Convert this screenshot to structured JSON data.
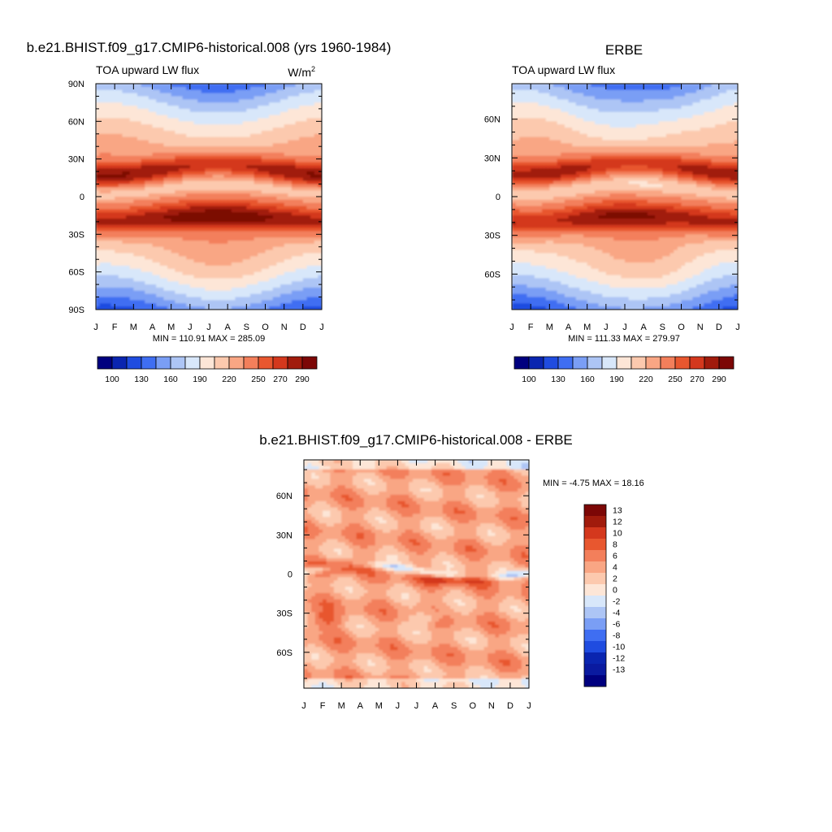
{
  "figure_title": "",
  "chart_data": [
    {
      "type": "heatmap",
      "title": "b.e21.BHIST.f09_g17.CMIP6-historical.008 (yrs 1960-1984)",
      "subtitle": "TOA upward LW flux",
      "units": "W/m",
      "units_sup": "2",
      "x_tick_labels": [
        "J",
        "F",
        "M",
        "A",
        "M",
        "J",
        "J",
        "A",
        "S",
        "O",
        "N",
        "D",
        "J"
      ],
      "y_tick_labels": [
        "90N",
        "60N",
        "30N",
        "0",
        "30S",
        "60S",
        "90S"
      ],
      "y_tick_values": [
        90,
        60,
        30,
        0,
        -30,
        -60,
        -90
      ],
      "xlim": [
        0,
        12
      ],
      "ylim": [
        -90,
        90
      ],
      "stats": "MIN = 110.91 MAX = 285.09",
      "min": 110.91,
      "max": 285.09,
      "colorbar": {
        "labels": [
          "100",
          "130",
          "160",
          "190",
          "220",
          "250",
          "270",
          "290"
        ],
        "colors": [
          "#00007f",
          "#0a25b0",
          "#1f4ce0",
          "#3f6ef2",
          "#7a9ef5",
          "#adc5f5",
          "#d8e7fa",
          "#fde6d7",
          "#fcc9ae",
          "#f9a684",
          "#f37f5b",
          "#e8572f",
          "#d4381d",
          "#a11b0c",
          "#7c0706"
        ],
        "boundaries": [
          95,
          100,
          115,
          130,
          145,
          160,
          175,
          190,
          205,
          220,
          235,
          250,
          260,
          270,
          280,
          290,
          300
        ]
      }
    },
    {
      "type": "heatmap",
      "title": "ERBE",
      "subtitle": "TOA upward LW flux",
      "x_tick_labels": [
        "J",
        "F",
        "M",
        "A",
        "M",
        "J",
        "J",
        "A",
        "S",
        "O",
        "N",
        "D",
        "J"
      ],
      "y_tick_labels": [
        "60N",
        "30N",
        "0",
        "30S",
        "60S"
      ],
      "y_tick_values": [
        60,
        30,
        0,
        -30,
        -60
      ],
      "xlim": [
        0,
        12
      ],
      "ylim": [
        -87.5,
        87.5
      ],
      "stats": "MIN = 111.33 MAX = 279.97",
      "min": 111.33,
      "max": 279.97,
      "colorbar": {
        "labels": [
          "100",
          "130",
          "160",
          "190",
          "220",
          "250",
          "270",
          "290"
        ]
      }
    },
    {
      "type": "heatmap",
      "title": "b.e21.BHIST.f09_g17.CMIP6-historical.008 - ERBE",
      "x_tick_labels": [
        "J",
        "F",
        "M",
        "A",
        "M",
        "J",
        "J",
        "A",
        "S",
        "O",
        "N",
        "D",
        "J"
      ],
      "y_tick_labels": [
        "60N",
        "30N",
        "0",
        "30S",
        "60S"
      ],
      "y_tick_values": [
        60,
        30,
        0,
        -30,
        -60
      ],
      "xlim": [
        0,
        12
      ],
      "ylim": [
        -87.5,
        87.5
      ],
      "stats": "MIN =  -4.75 MAX =  18.16",
      "min": -4.75,
      "max": 18.16,
      "colorbar": {
        "orientation": "vertical",
        "labels": [
          "13",
          "12",
          "10",
          "8",
          "6",
          "4",
          "2",
          "0",
          "-2",
          "-4",
          "-6",
          "-8",
          "-10",
          "-12",
          "-13"
        ],
        "colors": [
          "#7c0706",
          "#a11b0c",
          "#d4381d",
          "#e8572f",
          "#f37f5b",
          "#f9a684",
          "#fcc9ae",
          "#fde6d7",
          "#d8e7fa",
          "#adc5f5",
          "#7a9ef5",
          "#3f6ef2",
          "#1f4ce0",
          "#0a25b0",
          "#0a1aa0",
          "#00007f"
        ],
        "boundaries": [
          -14,
          -13,
          -12,
          -10,
          -8,
          -6,
          -4,
          -2,
          0,
          2,
          4,
          6,
          8,
          10,
          12,
          13,
          14
        ]
      }
    }
  ]
}
